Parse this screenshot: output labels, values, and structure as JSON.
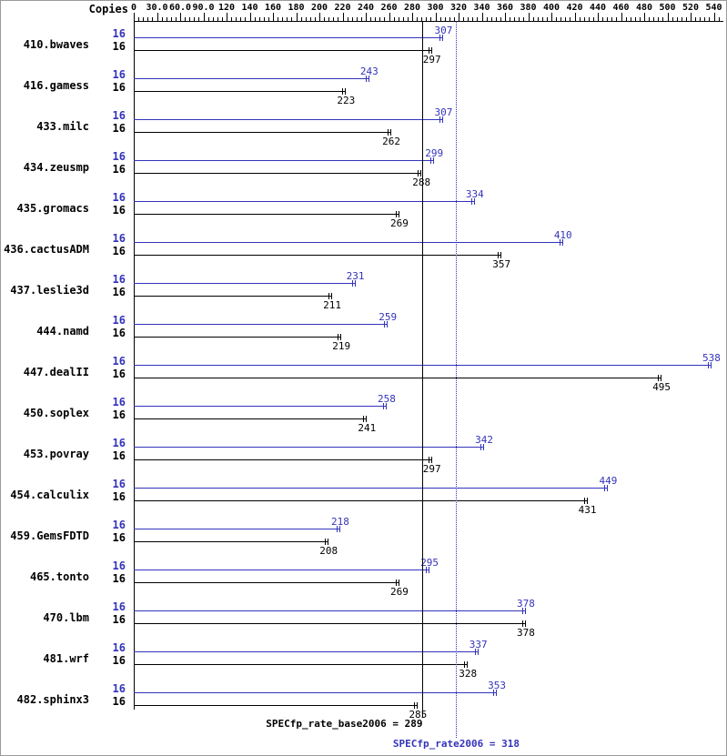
{
  "chart_data": {
    "type": "bar",
    "orientation": "horizontal",
    "title": "",
    "copies_header": "Copies",
    "categories": [
      "410.bwaves",
      "416.gamess",
      "433.milc",
      "434.zeusmp",
      "435.gromacs",
      "436.cactusADM",
      "437.leslie3d",
      "444.namd",
      "447.dealII",
      "450.soplex",
      "453.povray",
      "454.calculix",
      "459.GemsFDTD",
      "465.tonto",
      "470.lbm",
      "481.wrf",
      "482.sphinx3"
    ],
    "series": [
      {
        "name": "SPECfp_rate2006",
        "role": "peak",
        "color": "#3333bb",
        "value_label_position": "above",
        "copies": [
          16,
          16,
          16,
          16,
          16,
          16,
          16,
          16,
          16,
          16,
          16,
          16,
          16,
          16,
          16,
          16,
          16
        ],
        "values": [
          307,
          243,
          307,
          299,
          334,
          410,
          231,
          259,
          538,
          258,
          342,
          449,
          218,
          295,
          378,
          337,
          353
        ]
      },
      {
        "name": "SPECfp_rate_base2006",
        "role": "base",
        "color": "#000000",
        "value_label_position": "below",
        "copies": [
          16,
          16,
          16,
          16,
          16,
          16,
          16,
          16,
          16,
          16,
          16,
          16,
          16,
          16,
          16,
          16,
          16
        ],
        "values": [
          297,
          223,
          262,
          288,
          269,
          357,
          211,
          219,
          495,
          241,
          297,
          431,
          208,
          269,
          378,
          328,
          285
        ]
      }
    ],
    "x_axis": {
      "range": [
        0,
        540
      ],
      "tick_values": [
        0,
        30,
        60,
        90,
        120,
        140,
        160,
        180,
        200,
        220,
        240,
        260,
        280,
        300,
        320,
        340,
        360,
        380,
        400,
        420,
        440,
        460,
        480,
        500,
        520,
        540
      ],
      "tick_labels": [
        "0",
        "30.0",
        "60.0",
        "90.0",
        "120",
        "140",
        "160",
        "180",
        "200",
        "220",
        "240",
        "260",
        "280",
        "300",
        "320",
        "340",
        "360",
        "380",
        "400",
        "420",
        "440",
        "460",
        "480",
        "500",
        "520",
        "540"
      ],
      "minor_divisions": 5
    },
    "reference_lines": [
      {
        "label": "SPECfp_rate_base2006 = 289",
        "value": 289,
        "color": "#000000",
        "style": "solid"
      },
      {
        "label": "SPECfp_rate2006 = 318",
        "value": 318,
        "color": "#3333bb",
        "style": "dotted"
      }
    ]
  }
}
